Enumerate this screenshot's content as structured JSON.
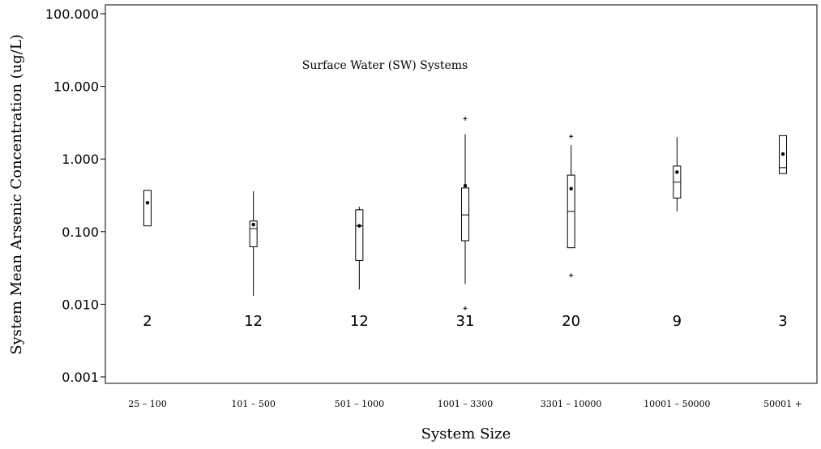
{
  "chart_data": {
    "type": "box",
    "title": "",
    "annotation": "Surface Water (SW) Systems",
    "xlabel": "System Size",
    "ylabel": "System Mean Arsenic Concentration (ug/L)",
    "yscale": "log",
    "ylim": [
      0.001,
      100
    ],
    "yticks": [
      0.001,
      0.01,
      0.1,
      1,
      10,
      100
    ],
    "ytick_labels": [
      "0.001",
      "0.010",
      "0.100",
      "1.000",
      "10.000",
      "100.000"
    ],
    "grid": false,
    "categories": [
      "25 – 100",
      "101 – 500",
      "501 – 1000",
      "1001 – 3300",
      "3301 – 10000",
      "10001 – 50000",
      "50001 +"
    ],
    "counts": [
      "2",
      "12",
      "12",
      "31",
      "20",
      "9",
      "3"
    ],
    "boxes": [
      {
        "q1": 0.12,
        "median": null,
        "q3": 0.37,
        "whisker_low": 0.12,
        "whisker_high": 0.37,
        "mean": 0.25,
        "outliers": []
      },
      {
        "q1": 0.062,
        "median": 0.11,
        "q3": 0.14,
        "whisker_low": 0.013,
        "whisker_high": 0.36,
        "mean": 0.125,
        "outliers": []
      },
      {
        "q1": 0.04,
        "median": 0.12,
        "q3": 0.2,
        "whisker_low": 0.016,
        "whisker_high": 0.22,
        "mean": 0.12,
        "outliers": []
      },
      {
        "q1": 0.075,
        "median": 0.17,
        "q3": 0.4,
        "whisker_low": 0.019,
        "whisker_high": 2.2,
        "mean": 0.43,
        "outliers": [
          3.6,
          0.0088
        ]
      },
      {
        "q1": 0.06,
        "median": 0.19,
        "q3": 0.6,
        "whisker_low": 0.06,
        "whisker_high": 1.55,
        "mean": 0.39,
        "outliers": [
          2.05,
          0.025
        ]
      },
      {
        "q1": 0.29,
        "median": 0.48,
        "q3": 0.8,
        "whisker_low": 0.19,
        "whisker_high": 2.0,
        "mean": 0.66,
        "outliers": []
      },
      {
        "q1": 0.63,
        "median": 0.76,
        "q3": 2.1,
        "whisker_low": 0.63,
        "whisker_high": 2.1,
        "mean": 1.17,
        "outliers": []
      }
    ]
  }
}
